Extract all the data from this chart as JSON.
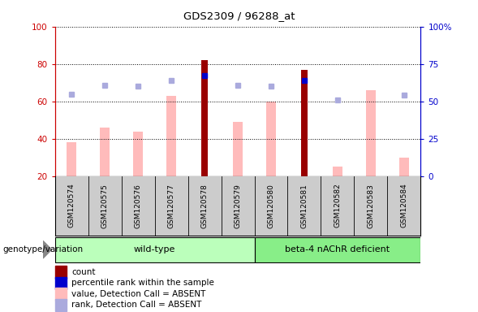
{
  "title": "GDS2309 / 96288_at",
  "samples": [
    "GSM120574",
    "GSM120575",
    "GSM120576",
    "GSM120577",
    "GSM120578",
    "GSM120579",
    "GSM120580",
    "GSM120581",
    "GSM120582",
    "GSM120583",
    "GSM120584"
  ],
  "wt_count": 6,
  "bt_count": 5,
  "count_values": [
    null,
    null,
    null,
    null,
    82,
    null,
    null,
    77,
    null,
    null,
    null
  ],
  "percentile_rank_values": [
    null,
    null,
    null,
    null,
    67,
    null,
    null,
    64,
    null,
    null,
    null
  ],
  "value_absent": [
    38,
    46,
    44,
    63,
    null,
    49,
    60,
    null,
    25,
    66,
    30
  ],
  "rank_absent": [
    55,
    61,
    60,
    64,
    null,
    61,
    60,
    null,
    51,
    null,
    54
  ],
  "ylim_left": [
    20,
    100
  ],
  "ylim_right": [
    0,
    100
  ],
  "yticks_left": [
    20,
    40,
    60,
    80,
    100
  ],
  "yticks_right": [
    0,
    25,
    50,
    75,
    100
  ],
  "yticklabels_right": [
    "0",
    "25",
    "50",
    "75",
    "100%"
  ],
  "left_axis_color": "#cc0000",
  "right_axis_color": "#0000cc",
  "bar_color_count": "#990000",
  "bar_color_value_absent": "#ffbbbb",
  "dot_color_percentile": "#0000cc",
  "dot_color_rank_absent": "#aaaadd",
  "group_color_wildtype": "#bbffbb",
  "group_color_beta": "#88ee88",
  "sample_bg_color": "#cccccc",
  "plot_bg": "#ffffff",
  "legend_items": [
    {
      "label": "count",
      "color": "#990000"
    },
    {
      "label": "percentile rank within the sample",
      "color": "#0000cc"
    },
    {
      "label": "value, Detection Call = ABSENT",
      "color": "#ffbbbb"
    },
    {
      "label": "rank, Detection Call = ABSENT",
      "color": "#aaaadd"
    }
  ]
}
